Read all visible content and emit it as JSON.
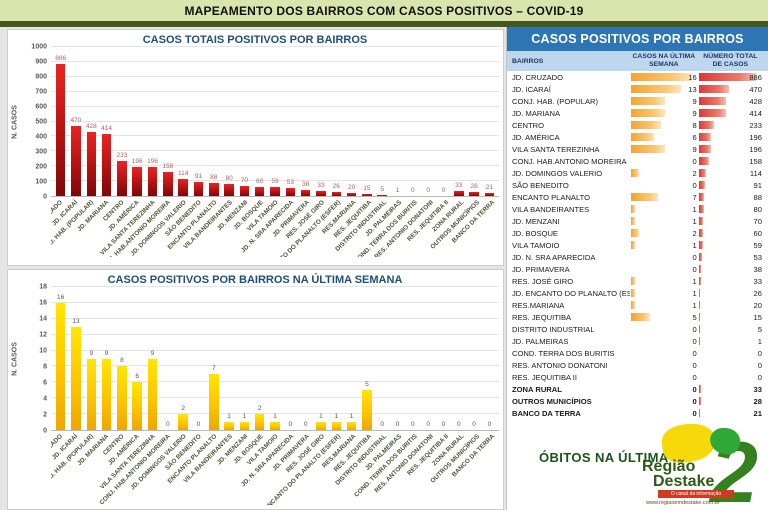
{
  "header": {
    "title": "MAPEAMENTO DOS BAIRROS COM CASOS POSITIVOS – COVID-19"
  },
  "colors": {
    "header_bg": "#d9e5ad",
    "header_strip": "#47551f",
    "chart_title": "#1f4e79",
    "bar_red": "#c00000",
    "bar_yellow": "#ffc000",
    "table_title_bg": "#2e75b6",
    "table_header_bg": "#bdd7ee",
    "databar_orange": "#f3a42c",
    "databar_red": "#dc3838",
    "obitos_green": "#1c521c"
  },
  "chart_data": [
    {
      "type": "bar",
      "title": "CASOS TOTAIS POSITIVOS POR BAIRROS",
      "xlabel": "",
      "ylabel": "N. CASOS",
      "ylim": [
        0,
        1000
      ],
      "ytick_step": 100,
      "grid": true,
      "bar_style": "red",
      "categories": [
        "JD. CRUZADO",
        "JD. ICARAÍ",
        "CONJ. HAB. (POPULAR)",
        "JD. MARIANA",
        "CENTRO",
        "JD. AMÉRICA",
        "VILA SANTA TEREZINHA",
        "CONJ. HAB.ANTONIO MOREIRA",
        "JD. DOMINGOS VALERIO",
        "SÃO BENEDITO",
        "ENCANTO PLANALTO",
        "VILA BANDEIRANTES",
        "JD. MENZANI",
        "JD. BOSQUE",
        "VILA TAMOIO",
        "JD. N. SRA APARECIDA",
        "JD. PRIMAVERA",
        "RES. JOSÉ GIRO",
        "JD. ENCANTO DO PLANALTO (ESFER)",
        "RES.MARIANA",
        "RES. JEQUITIBA",
        "DISTRITO INDUSTRIAL",
        "JD. PALMEIRAS",
        "COND. TERRA DOS BURITIS",
        "RES. ANTONIO DONATONI",
        "RES. JEQUITIBA II",
        "ZONA RURAL",
        "OUTROS MUNICÍPIOS",
        "BANCO DA TERRA"
      ],
      "values": [
        886,
        470,
        428,
        414,
        233,
        196,
        196,
        158,
        114,
        91,
        88,
        80,
        70,
        60,
        59,
        53,
        38,
        33,
        26,
        20,
        15,
        5,
        1,
        0,
        0,
        0,
        33,
        28,
        21
      ]
    },
    {
      "type": "bar",
      "title": "CASOS POSITIVOS POR BAIRROS NA ÚLTIMA SEMANA",
      "xlabel": "",
      "ylabel": "N. CASOS",
      "ylim": [
        0,
        18
      ],
      "ytick_step": 2,
      "grid": true,
      "bar_style": "yellow",
      "categories": [
        "JD. CRUZADO",
        "JD. ICARAÍ",
        "CONJ. HAB. (POPULAR)",
        "JD. MARIANA",
        "CENTRO",
        "JD. AMÉRICA",
        "VILA SANTA TEREZINHA",
        "CONJ. HAB.ANTONIO MOREIRA",
        "JD. DOMINGOS VALERIO",
        "SÃO BENEDITO",
        "ENCANTO PLANALTO",
        "VILA BANDEIRANTES",
        "JD. MENZANI",
        "JD. BOSQUE",
        "VILA TAMOIO",
        "JD. N. SRA APARECIDA",
        "JD. PRIMAVERA",
        "RES. JOSÉ GIRO",
        "JD. ENCANTO DO PLANALTO (ESFER)",
        "RES.MARIANA",
        "RES. JEQUITIBA",
        "DISTRITO INDUSTRIAL",
        "JD. PALMEIRAS",
        "COND. TERRA DOS BURITIS",
        "RES. ANTONIO DONATONI",
        "RES. JEQUITIBA II",
        "ZONA RURAL",
        "OUTROS MUNICÍPIOS",
        "BANCO DA TERRA"
      ],
      "values": [
        16,
        13,
        9,
        9,
        8,
        6,
        9,
        0,
        2,
        0,
        7,
        1,
        1,
        2,
        1,
        0,
        0,
        1,
        1,
        1,
        5,
        0,
        0,
        0,
        0,
        0,
        0,
        0,
        0
      ]
    }
  ],
  "table": {
    "title": "CASOS POSITIVOS POR BAIRROS",
    "columns": [
      "BAIRROS",
      "CASOS NA ÚLTIMA SEMANA",
      "NÚMERO TOTAL DE CASOS"
    ],
    "rows": [
      {
        "name": "JD. CRUZADO",
        "week": 16,
        "total": 886,
        "bold": false
      },
      {
        "name": "JD. ICARAÍ",
        "week": 13,
        "total": 470,
        "bold": false
      },
      {
        "name": "CONJ. HAB. (POPULAR)",
        "week": 9,
        "total": 428,
        "bold": false
      },
      {
        "name": "JD. MARIANA",
        "week": 9,
        "total": 414,
        "bold": false
      },
      {
        "name": "CENTRO",
        "week": 8,
        "total": 233,
        "bold": false
      },
      {
        "name": "JD. AMÉRICA",
        "week": 6,
        "total": 196,
        "bold": false
      },
      {
        "name": "VILA SANTA TEREZINHA",
        "week": 9,
        "total": 196,
        "bold": false
      },
      {
        "name": "CONJ. HAB.ANTONIO MOREIRA",
        "week": 0,
        "total": 158,
        "bold": false
      },
      {
        "name": "JD. DOMINGOS VALERIO",
        "week": 2,
        "total": 114,
        "bold": false
      },
      {
        "name": "SÃO BENEDITO",
        "week": 0,
        "total": 91,
        "bold": false
      },
      {
        "name": "ENCANTO PLANALTO",
        "week": 7,
        "total": 88,
        "bold": false
      },
      {
        "name": "VILA BANDEIRANTES",
        "week": 1,
        "total": 80,
        "bold": false
      },
      {
        "name": "JD. MENZANI",
        "week": 1,
        "total": 70,
        "bold": false
      },
      {
        "name": "JD. BOSQUE",
        "week": 2,
        "total": 60,
        "bold": false
      },
      {
        "name": "VILA TAMOIO",
        "week": 1,
        "total": 59,
        "bold": false
      },
      {
        "name": "JD. N. SRA APARECIDA",
        "week": 0,
        "total": 53,
        "bold": false
      },
      {
        "name": "JD. PRIMAVERA",
        "week": 0,
        "total": 38,
        "bold": false
      },
      {
        "name": "RES. JOSÉ GIRO",
        "week": 1,
        "total": 33,
        "bold": false
      },
      {
        "name": "JD. ENCANTO DO PLANALTO (ESFER",
        "week": 1,
        "total": 26,
        "bold": false
      },
      {
        "name": "RES.MARIANA",
        "week": 1,
        "total": 20,
        "bold": false
      },
      {
        "name": "RES. JEQUITIBA",
        "week": 5,
        "total": 15,
        "bold": false
      },
      {
        "name": "DISTRITO INDUSTRIAL",
        "week": 0,
        "total": 5,
        "bold": false
      },
      {
        "name": "JD. PALMEIRAS",
        "week": 0,
        "total": 1,
        "bold": false
      },
      {
        "name": "COND. TERRA DOS BURITIS",
        "week": 0,
        "total": 0,
        "bold": false
      },
      {
        "name": "RES. ANTONIO DONATONI",
        "week": 0,
        "total": 0,
        "bold": false
      },
      {
        "name": "RES. JEQUITIBA II",
        "week": 0,
        "total": 0,
        "bold": false
      },
      {
        "name": "ZONA RURAL",
        "week": 0,
        "total": 33,
        "bold": true
      },
      {
        "name": "OUTROS MUNICÍPIOS",
        "week": 0,
        "total": 28,
        "bold": true
      },
      {
        "name": "BANCO DA TERRA",
        "week": 0,
        "total": 21,
        "bold": true
      }
    ]
  },
  "footer": {
    "obitos_label": "ÓBITOS NA ÚLTIMA",
    "logo": {
      "line1": "Região",
      "line2": "Destake",
      "big_numeral": "2",
      "tagline": "O canal da informação",
      "website": "www.regiaoemdestake.com.br"
    }
  }
}
